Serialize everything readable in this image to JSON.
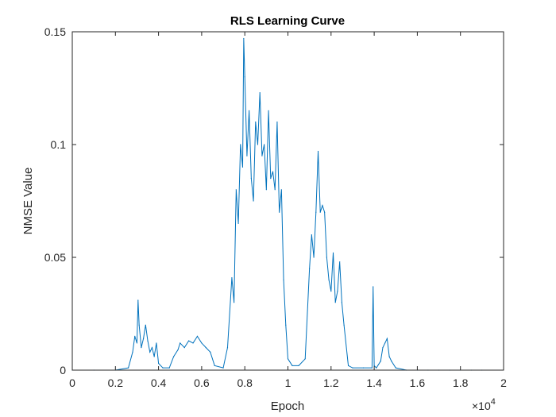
{
  "chart_data": {
    "type": "line",
    "title": "RLS Learning Curve",
    "xlabel": "Epoch",
    "ylabel": "NMSE Value",
    "xlim": [
      0,
      20000
    ],
    "ylim": [
      0,
      0.15
    ],
    "x_tick_labels": [
      "0",
      "0.2",
      "0.4",
      "0.6",
      "0.8",
      "1",
      "1.2",
      "1.4",
      "1.6",
      "1.8",
      "2"
    ],
    "y_tick_labels": [
      "0",
      "0.05",
      "0.1",
      "0.15"
    ],
    "x_exponent": {
      "base": "×10",
      "power": "4"
    },
    "grid": false,
    "line_color": "#0072BD",
    "series": [
      {
        "x": [
          0,
          1000,
          2000,
          2600,
          2800,
          2900,
          3000,
          3050,
          3100,
          3200,
          3300,
          3400,
          3500,
          3600,
          3700,
          3800,
          3900,
          4000,
          4200,
          4500,
          4700,
          4900,
          5000,
          5200,
          5400,
          5600,
          5800,
          6000,
          6200,
          6400,
          6600,
          7000,
          7200,
          7400,
          7500,
          7600,
          7700,
          7800,
          7900,
          7950,
          8000,
          8100,
          8200,
          8300,
          8400,
          8500,
          8600,
          8700,
          8800,
          8900,
          9000,
          9100,
          9200,
          9300,
          9400,
          9500,
          9600,
          9700,
          9800,
          9900,
          10000,
          10200,
          10500,
          10800,
          11000,
          11100,
          11200,
          11300,
          11400,
          11500,
          11600,
          11700,
          11800,
          11900,
          12000,
          12100,
          12200,
          12300,
          12400,
          12500,
          12600,
          12800,
          13000,
          13500,
          13900,
          13950,
          14000,
          14100,
          14300,
          14400,
          14500,
          14600,
          14700,
          14800,
          15000,
          15500,
          16000,
          16500,
          17000,
          17500,
          18000,
          18500,
          19000
        ],
        "y": [
          0,
          0,
          0,
          0.001,
          0.008,
          0.015,
          0.012,
          0.031,
          0.02,
          0.01,
          0.014,
          0.02,
          0.013,
          0.008,
          0.01,
          0.006,
          0.012,
          0.003,
          0.001,
          0.001,
          0.006,
          0.009,
          0.012,
          0.01,
          0.013,
          0.012,
          0.015,
          0.012,
          0.01,
          0.008,
          0.002,
          0.001,
          0.01,
          0.041,
          0.03,
          0.08,
          0.065,
          0.1,
          0.09,
          0.147,
          0.13,
          0.095,
          0.115,
          0.085,
          0.075,
          0.11,
          0.1,
          0.123,
          0.095,
          0.1,
          0.08,
          0.115,
          0.085,
          0.088,
          0.08,
          0.11,
          0.07,
          0.08,
          0.04,
          0.02,
          0.005,
          0.002,
          0.002,
          0.005,
          0.045,
          0.06,
          0.05,
          0.07,
          0.097,
          0.07,
          0.073,
          0.07,
          0.05,
          0.04,
          0.035,
          0.052,
          0.03,
          0.035,
          0.048,
          0.03,
          0.02,
          0.002,
          0.001,
          0.001,
          0.001,
          0.037,
          0.002,
          0.001,
          0.004,
          0.01,
          0.012,
          0.014,
          0.006,
          0.004,
          0.001,
          0,
          0,
          0,
          0,
          0,
          0,
          0,
          0
        ]
      }
    ]
  }
}
